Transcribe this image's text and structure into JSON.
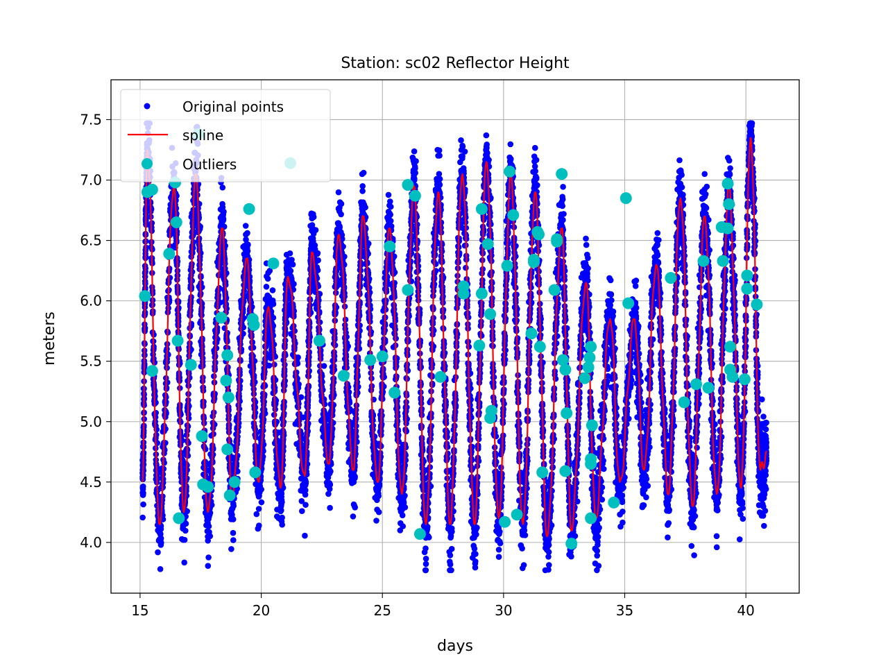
{
  "chart_data": {
    "type": "scatter",
    "title": "Station: sc02 Reflector Height",
    "xlabel": "days",
    "ylabel": "meters",
    "xlim": [
      13.8,
      42.2
    ],
    "ylim": [
      3.58,
      7.83
    ],
    "xticks": [
      15,
      20,
      25,
      30,
      35,
      40
    ],
    "yticks": [
      4.0,
      4.5,
      5.0,
      5.5,
      6.0,
      6.5,
      7.0,
      7.5
    ],
    "xtick_labels": [
      "15",
      "20",
      "25",
      "30",
      "35",
      "40"
    ],
    "ytick_labels": [
      "4.0",
      "4.5",
      "5.0",
      "5.5",
      "6.0",
      "6.5",
      "7.0",
      "7.5"
    ],
    "grid": true,
    "legend_position": "upper-left",
    "series": [
      {
        "name": "Original points",
        "kind": "scatter-small",
        "color": "#0000ff",
        "x_range": [
          15.05,
          40.95
        ],
        "y_range": [
          3.77,
          7.47
        ]
      },
      {
        "name": "spline",
        "kind": "line",
        "color": "#ff0000",
        "peaks": [
          [
            15.3,
            7.25
          ],
          [
            16.4,
            6.95
          ],
          [
            17.3,
            7.05
          ],
          [
            18.4,
            6.6
          ],
          [
            19.4,
            6.35
          ],
          [
            20.3,
            5.95
          ],
          [
            21.1,
            6.2
          ],
          [
            22.1,
            6.4
          ],
          [
            23.2,
            6.55
          ],
          [
            24.2,
            6.7
          ],
          [
            25.3,
            6.6
          ],
          [
            26.3,
            6.95
          ],
          [
            27.3,
            6.9
          ],
          [
            28.3,
            7.05
          ],
          [
            29.3,
            7.15
          ],
          [
            30.3,
            7.05
          ],
          [
            31.3,
            6.9
          ],
          [
            32.4,
            6.6
          ],
          [
            33.4,
            6.15
          ],
          [
            34.4,
            5.85
          ],
          [
            35.4,
            5.85
          ],
          [
            36.3,
            6.3
          ],
          [
            37.3,
            6.85
          ],
          [
            38.3,
            6.7
          ],
          [
            39.3,
            6.95
          ],
          [
            40.2,
            7.35
          ]
        ],
        "troughs": [
          [
            15.8,
            4.15
          ],
          [
            16.8,
            4.25
          ],
          [
            17.8,
            4.25
          ],
          [
            18.8,
            4.35
          ],
          [
            19.9,
            4.5
          ],
          [
            20.8,
            4.45
          ],
          [
            21.8,
            4.55
          ],
          [
            22.8,
            4.65
          ],
          [
            23.8,
            4.6
          ],
          [
            24.8,
            4.5
          ],
          [
            25.8,
            4.4
          ],
          [
            26.8,
            4.15
          ],
          [
            27.8,
            4.15
          ],
          [
            28.8,
            4.15
          ],
          [
            29.8,
            4.2
          ],
          [
            30.8,
            4.15
          ],
          [
            31.8,
            4.05
          ],
          [
            32.8,
            4.1
          ],
          [
            33.8,
            4.2
          ],
          [
            34.8,
            4.5
          ],
          [
            35.8,
            4.6
          ],
          [
            36.8,
            4.4
          ],
          [
            37.8,
            4.3
          ],
          [
            38.8,
            4.4
          ],
          [
            39.8,
            4.45
          ],
          [
            40.6,
            4.6
          ]
        ]
      },
      {
        "name": "Outliers",
        "kind": "scatter-large",
        "color": "#00bfbf",
        "points": [
          [
            15.2,
            6.04
          ],
          [
            15.3,
            6.9
          ],
          [
            15.5,
            6.92
          ],
          [
            15.5,
            5.42
          ],
          [
            16.2,
            6.39
          ],
          [
            16.45,
            6.98
          ],
          [
            16.5,
            6.65
          ],
          [
            16.55,
            5.67
          ],
          [
            16.6,
            4.2
          ],
          [
            17.1,
            5.47
          ],
          [
            17.4,
            7.38
          ],
          [
            17.55,
            4.88
          ],
          [
            17.6,
            4.48
          ],
          [
            17.8,
            4.46
          ],
          [
            18.35,
            5.86
          ],
          [
            18.55,
            5.34
          ],
          [
            18.6,
            5.55
          ],
          [
            18.65,
            5.2
          ],
          [
            18.6,
            4.77
          ],
          [
            18.7,
            4.39
          ],
          [
            18.9,
            4.5
          ],
          [
            19.5,
            6.76
          ],
          [
            19.65,
            5.85
          ],
          [
            19.7,
            5.8
          ],
          [
            19.75,
            4.58
          ],
          [
            20.5,
            6.31
          ],
          [
            21.2,
            7.14
          ],
          [
            22.4,
            5.67
          ],
          [
            23.4,
            5.38
          ],
          [
            24.5,
            5.51
          ],
          [
            25.0,
            5.54
          ],
          [
            25.3,
            6.45
          ],
          [
            25.5,
            5.24
          ],
          [
            26.05,
            6.96
          ],
          [
            26.05,
            6.09
          ],
          [
            26.35,
            6.87
          ],
          [
            26.55,
            4.07
          ],
          [
            27.4,
            5.37
          ],
          [
            28.35,
            6.12
          ],
          [
            28.35,
            6.06
          ],
          [
            29.0,
            5.63
          ],
          [
            29.1,
            6.06
          ],
          [
            29.1,
            6.76
          ],
          [
            29.35,
            6.47
          ],
          [
            29.5,
            5.09
          ],
          [
            29.45,
            5.03
          ],
          [
            29.45,
            5.89
          ],
          [
            30.05,
            4.17
          ],
          [
            30.15,
            6.29
          ],
          [
            30.25,
            7.07
          ],
          [
            30.4,
            6.71
          ],
          [
            30.55,
            4.23
          ],
          [
            31.15,
            5.73
          ],
          [
            31.25,
            6.32
          ],
          [
            31.25,
            6.34
          ],
          [
            31.4,
            6.57
          ],
          [
            31.45,
            6.55
          ],
          [
            31.5,
            5.62
          ],
          [
            31.6,
            4.58
          ],
          [
            32.1,
            6.09
          ],
          [
            32.2,
            6.51
          ],
          [
            32.2,
            6.49
          ],
          [
            32.4,
            7.05
          ],
          [
            32.45,
            5.51
          ],
          [
            32.55,
            5.43
          ],
          [
            32.6,
            5.07
          ],
          [
            32.55,
            4.59
          ],
          [
            32.8,
            3.99
          ],
          [
            33.35,
            5.36
          ],
          [
            33.5,
            5.45
          ],
          [
            33.55,
            5.53
          ],
          [
            33.6,
            5.62
          ],
          [
            33.6,
            4.69
          ],
          [
            33.6,
            4.65
          ],
          [
            33.65,
            4.97
          ],
          [
            33.6,
            4.2
          ],
          [
            34.55,
            4.33
          ],
          [
            35.05,
            6.85
          ],
          [
            35.15,
            5.98
          ],
          [
            36.9,
            6.19
          ],
          [
            37.45,
            5.16
          ],
          [
            37.95,
            5.31
          ],
          [
            38.25,
            6.33
          ],
          [
            38.45,
            5.28
          ],
          [
            39.0,
            6.61
          ],
          [
            39.05,
            6.33
          ],
          [
            39.25,
            6.6
          ],
          [
            39.25,
            6.97
          ],
          [
            39.3,
            6.8
          ],
          [
            39.35,
            5.62
          ],
          [
            39.35,
            5.43
          ],
          [
            39.45,
            5.37
          ],
          [
            39.95,
            5.35
          ],
          [
            40.05,
            6.21
          ],
          [
            40.05,
            6.1
          ],
          [
            40.45,
            5.97
          ]
        ]
      }
    ]
  }
}
